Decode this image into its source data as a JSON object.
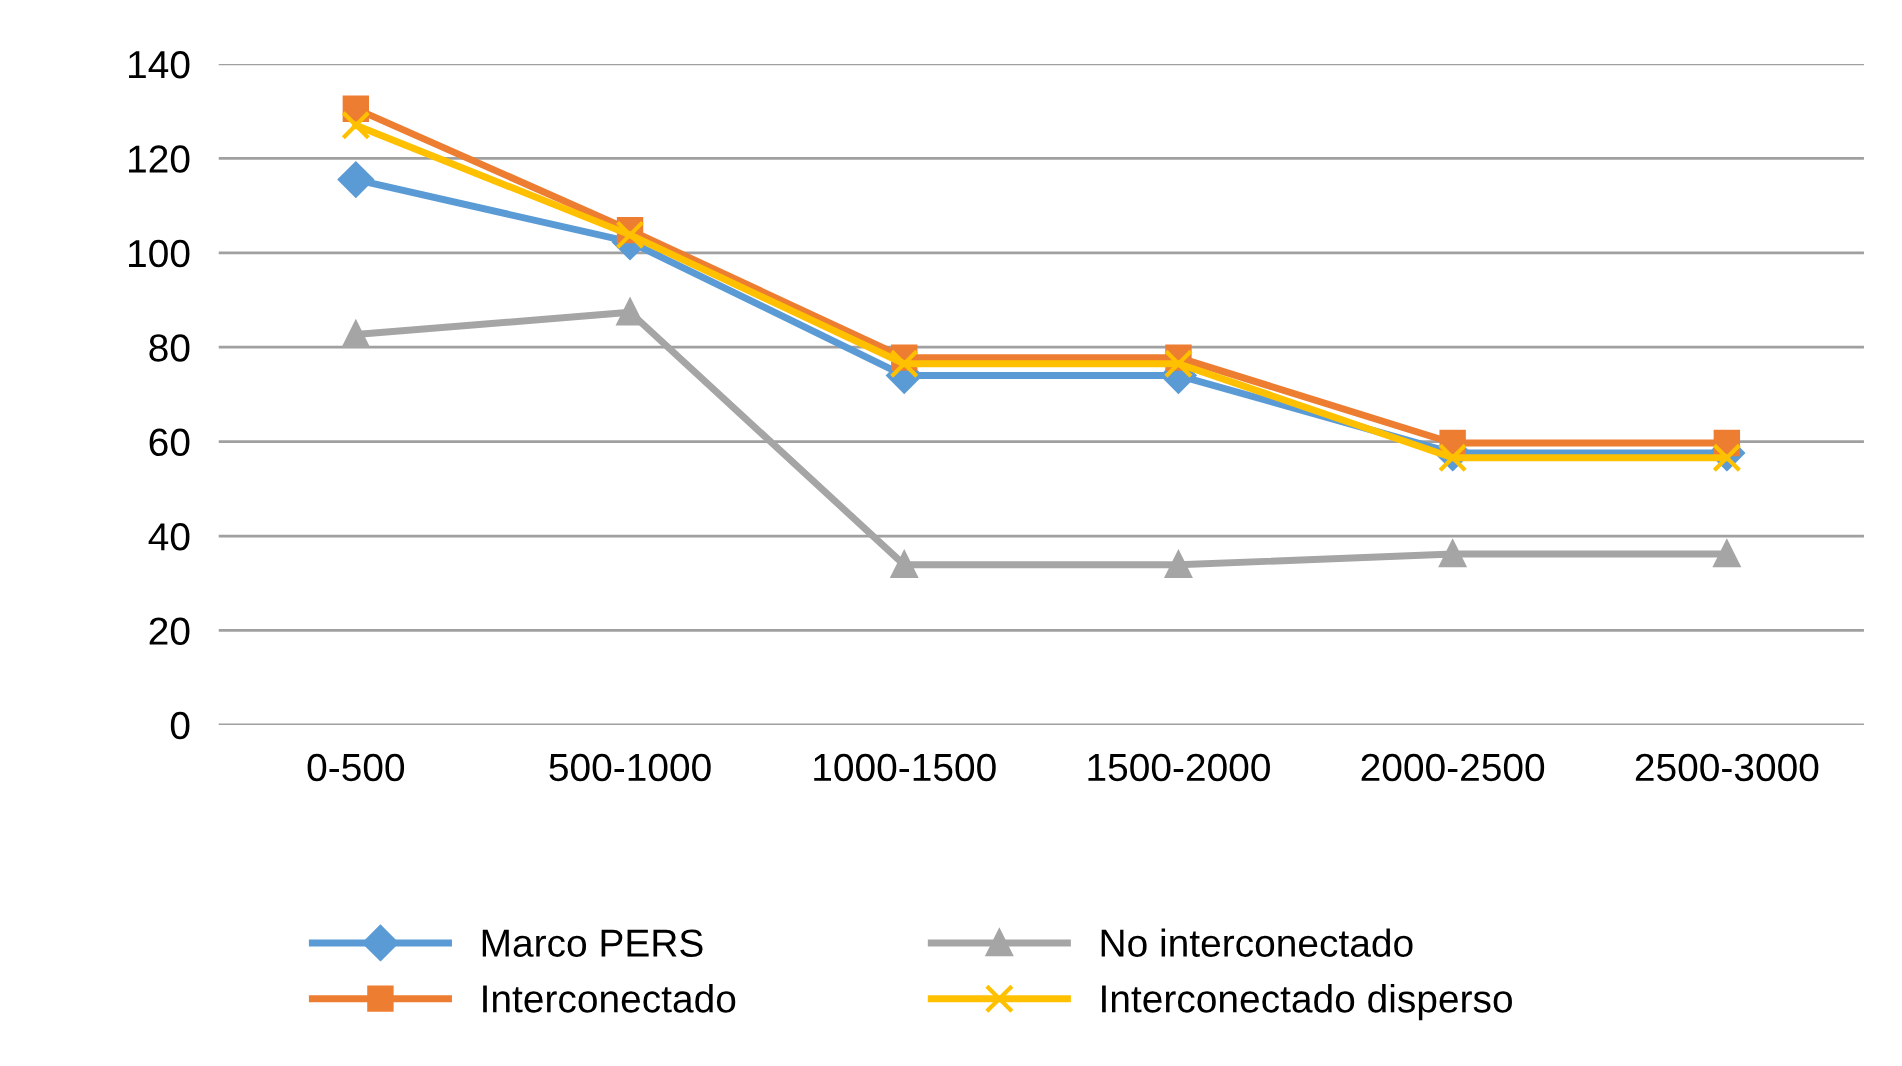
{
  "chart_data": {
    "type": "line",
    "categories": [
      "0-500",
      "500-1000",
      "1000-1500",
      "1500-2000",
      "2000-2500",
      "2500-3000"
    ],
    "series": [
      {
        "name": "Marco PERS",
        "color": "#5b9bd5",
        "marker": "diamond",
        "values": [
          115.5,
          102.3,
          74,
          74,
          57.6,
          57.6
        ]
      },
      {
        "name": "Interconectado",
        "color": "#ed7d31",
        "marker": "square",
        "values": [
          130.5,
          104.8,
          77.8,
          77.8,
          59.7,
          59.7
        ]
      },
      {
        "name": "No interconectado",
        "color": "#a5a5a5",
        "marker": "triangle",
        "values": [
          82.7,
          87.4,
          33.9,
          33.9,
          36.2,
          36.2
        ]
      },
      {
        "name": "Interconectado disperso",
        "color": "#ffc000",
        "marker": "cross",
        "values": [
          127,
          103.8,
          76.5,
          76.5,
          56.6,
          56.6
        ]
      }
    ],
    "ylim": [
      0,
      140
    ],
    "yticks": [
      0,
      20,
      40,
      60,
      80,
      100,
      120,
      140
    ],
    "grid": "y",
    "legend": "bottom",
    "line_style": "solid"
  }
}
